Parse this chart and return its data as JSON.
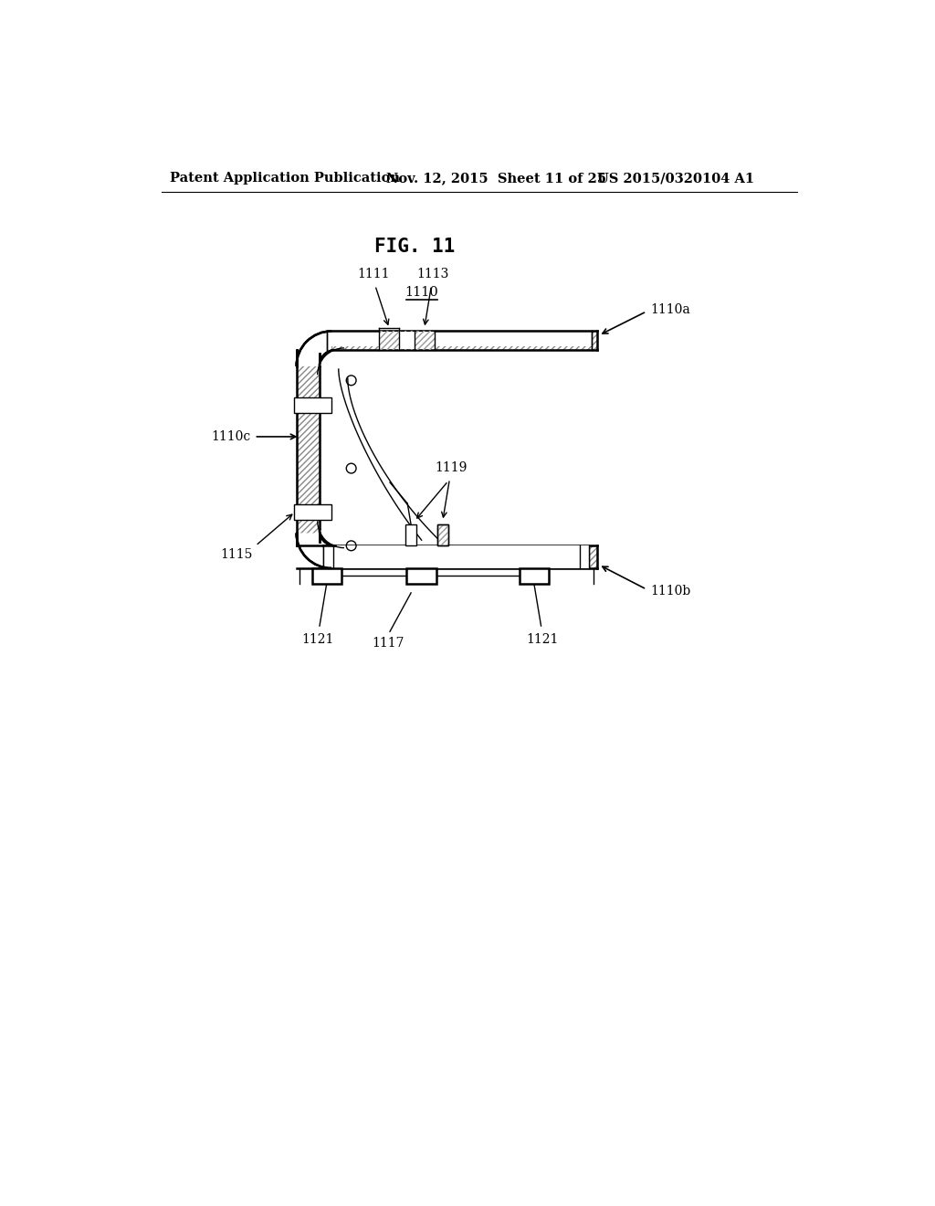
{
  "header_left": "Patent Application Publication",
  "header_mid": "Nov. 12, 2015  Sheet 11 of 25",
  "header_right": "US 2015/0320104 A1",
  "fig_label": "FIG. 11",
  "ref_main": "1110",
  "ref_top_panel": "1110a",
  "ref_side_panel": "1110c",
  "ref_bottom_panel": "1110b",
  "ref_1111": "1111",
  "ref_1113": "1113",
  "ref_1115": "1115",
  "ref_1117": "1117",
  "ref_1119": "1119",
  "ref_1121_left": "1121",
  "ref_1121_right": "1121",
  "bg_color": "#ffffff",
  "line_color": "#000000"
}
